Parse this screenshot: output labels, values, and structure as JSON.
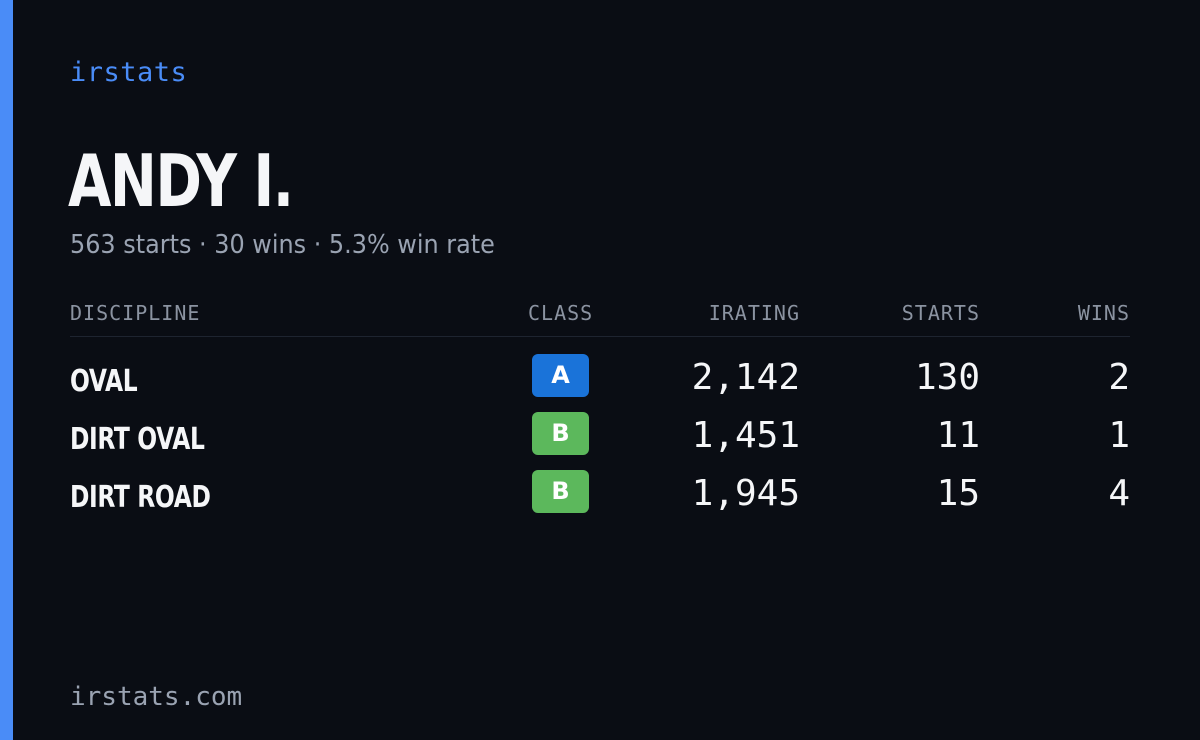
{
  "brand": "irstats",
  "driver": {
    "name": "ANDY I.",
    "summary": "563 starts · 30 wins · 5.3% win rate"
  },
  "table": {
    "headers": {
      "discipline": "DISCIPLINE",
      "class": "CLASS",
      "irating": "IRATING",
      "starts": "STARTS",
      "wins": "WINS"
    },
    "rows": [
      {
        "discipline": "OVAL",
        "class": "A",
        "class_color": "#1a73d9",
        "irating": "2,142",
        "starts": "130",
        "wins": "2"
      },
      {
        "discipline": "DIRT OVAL",
        "class": "B",
        "class_color": "#5cb85c",
        "irating": "1,451",
        "starts": "11",
        "wins": "1"
      },
      {
        "discipline": "DIRT ROAD",
        "class": "B",
        "class_color": "#5cb85c",
        "irating": "1,945",
        "starts": "15",
        "wins": "4"
      }
    ]
  },
  "footer": "irstats.com",
  "colors": {
    "background": "#0a0d14",
    "accent": "#4a8cf7"
  }
}
